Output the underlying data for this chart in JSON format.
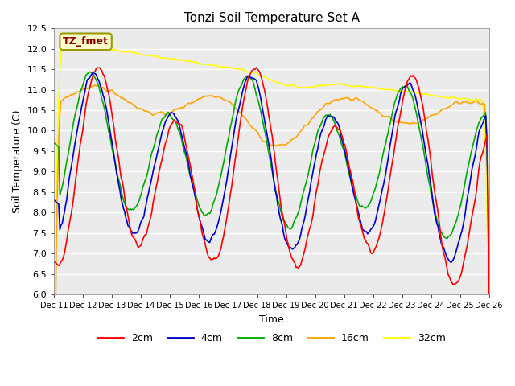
{
  "title": "Tonzi Soil Temperature Set A",
  "xlabel": "Time",
  "ylabel": "Soil Temperature (C)",
  "ylim": [
    6.0,
    12.5
  ],
  "xlim": [
    0,
    375
  ],
  "annotation": "TZ_fmet",
  "annotation_color": "#8B0000",
  "annotation_bg": "#FFFFCC",
  "colors": {
    "2cm": "#FF0000",
    "4cm": "#0000CD",
    "8cm": "#00AA00",
    "16cm": "#FFA500",
    "32cm": "#FFFF00"
  },
  "legend_labels": [
    "2cm",
    "4cm",
    "8cm",
    "16cm",
    "32cm"
  ],
  "tick_labels": [
    "Dec 11",
    "Dec 12",
    "Dec 13",
    "Dec 14",
    "Dec 15",
    "Dec 16",
    "Dec 17",
    "Dec 18",
    "Dec 19",
    "Dec 20",
    "Dec 21",
    "Dec 22",
    "Dec 23",
    "Dec 24",
    "Dec 25",
    "Dec 26"
  ],
  "tick_positions": [
    0,
    25,
    50,
    75,
    100,
    125,
    150,
    175,
    200,
    225,
    250,
    275,
    300,
    325,
    350,
    375
  ],
  "bg_color": "#E8E8E8",
  "plot_bg": "#F0F0F0"
}
